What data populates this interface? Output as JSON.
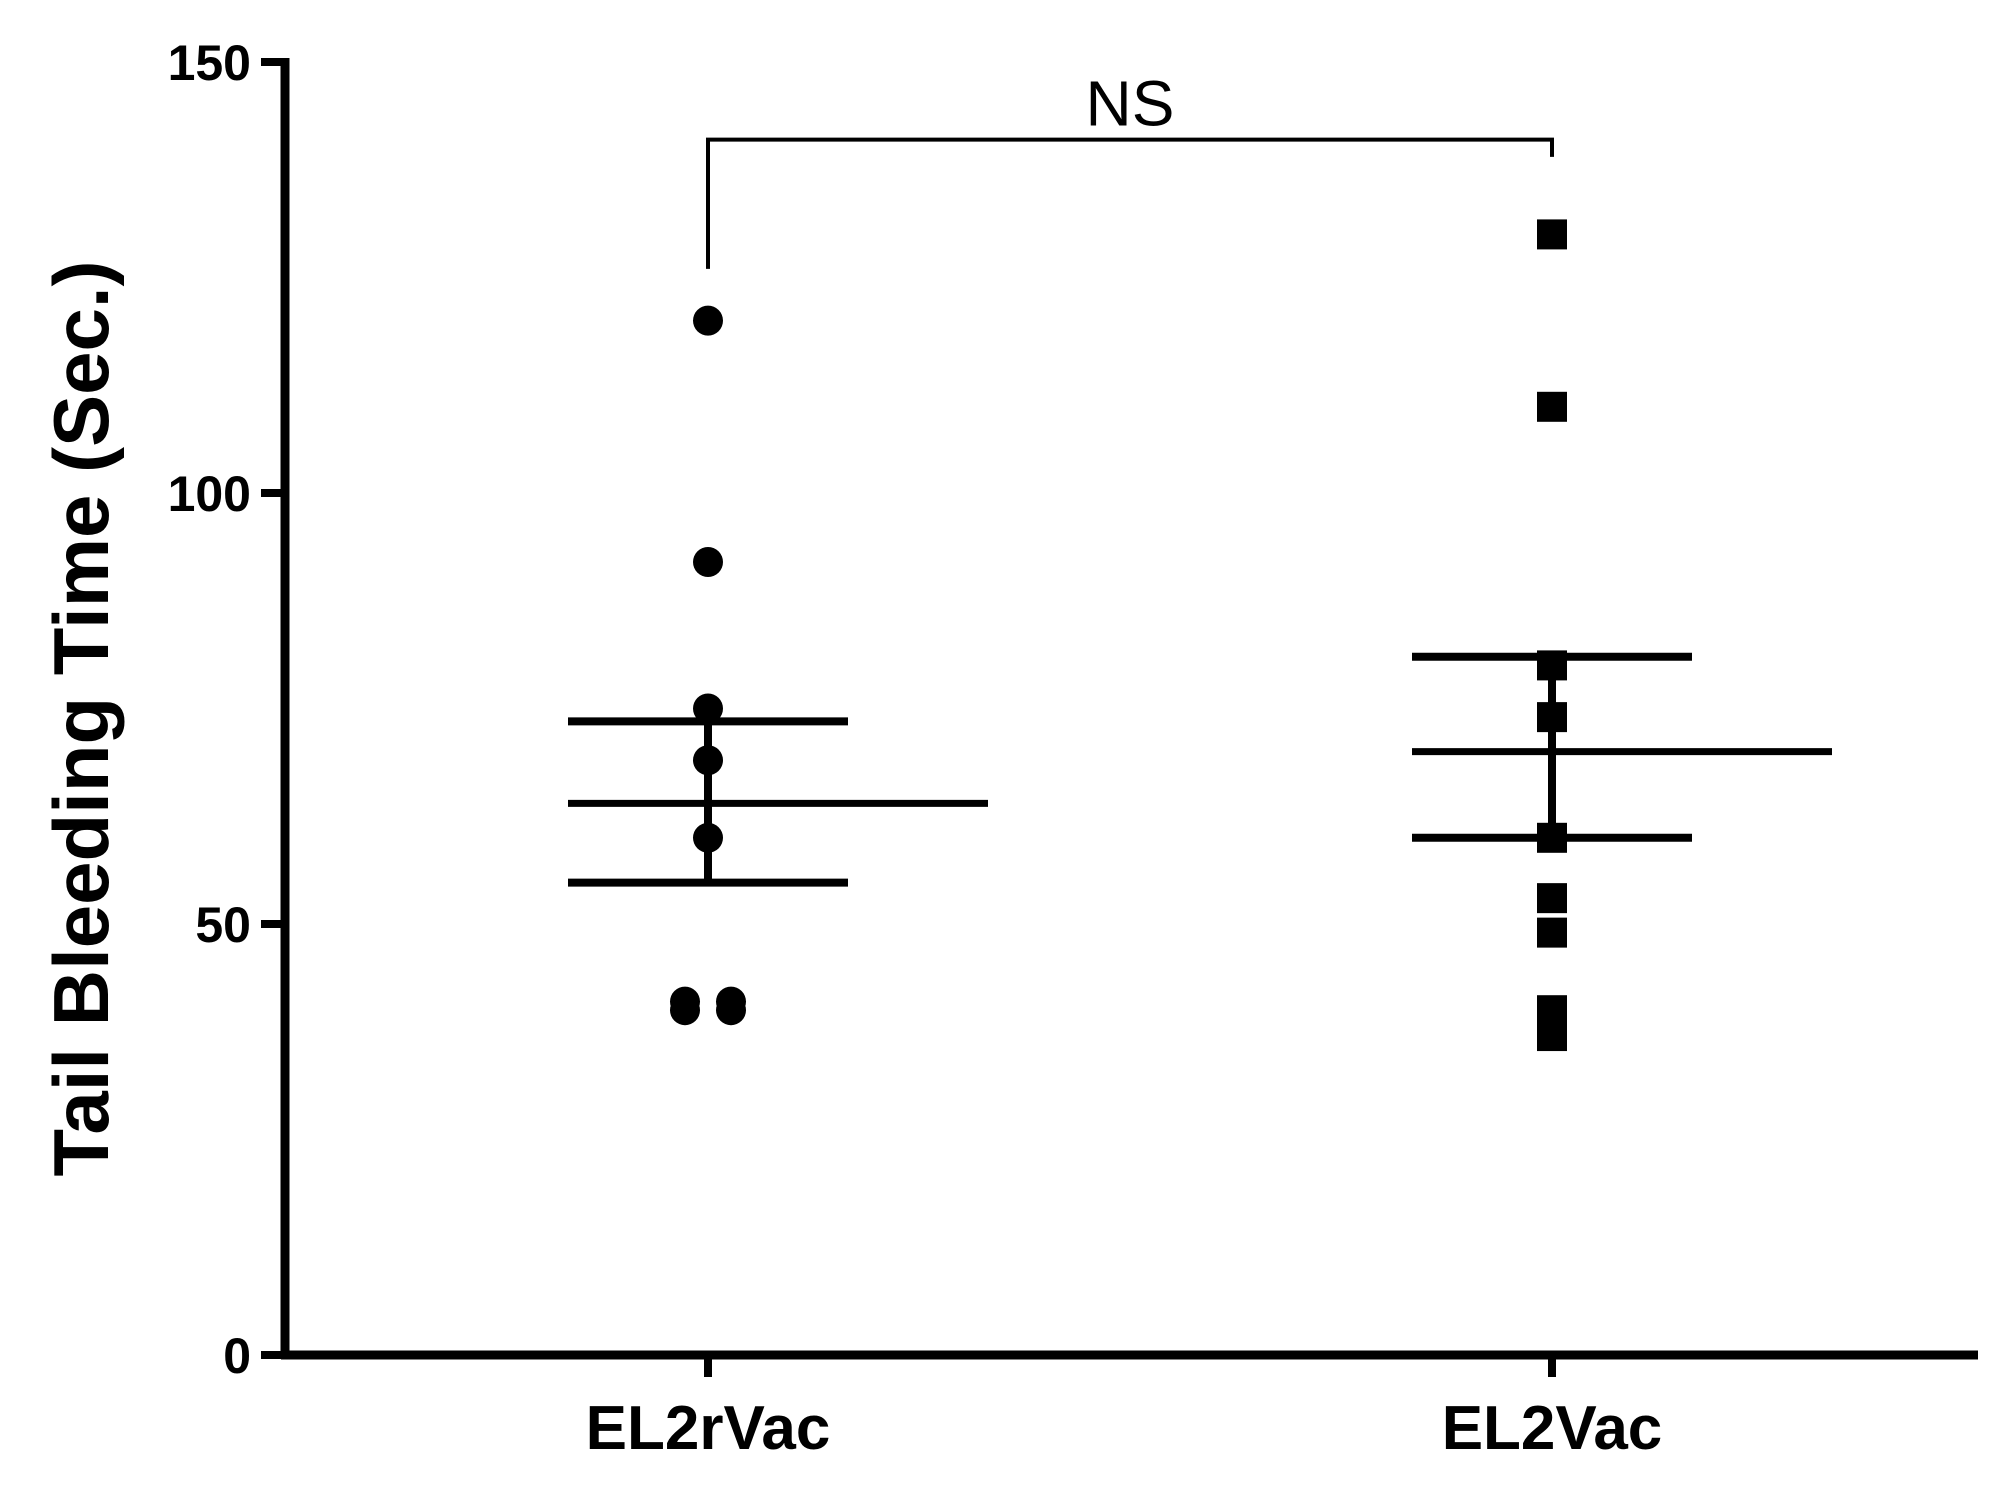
{
  "chart_data": {
    "type": "scatter",
    "ylabel": "Tail Bleeding Time  (Sec.)",
    "xlabel": "",
    "ylim": [
      0,
      150
    ],
    "yticks": [
      0,
      50,
      100,
      150
    ],
    "categories": [
      "EL2rVac",
      "EL2Vac"
    ],
    "series": [
      {
        "category": "EL2rVac",
        "marker": "circle",
        "values": [
          120,
          92,
          75,
          69,
          60,
          41,
          40,
          40,
          41
        ],
        "mean": 64,
        "sem_upper": 73.5,
        "sem_lower": 54.8
      },
      {
        "category": "EL2Vac",
        "marker": "square",
        "values": [
          130,
          110,
          80,
          74,
          60,
          53,
          49,
          40,
          37
        ],
        "mean": 70,
        "sem_upper": 81,
        "sem_lower": 60
      }
    ],
    "annotations": [
      {
        "text": "NS",
        "between": [
          "EL2rVac",
          "EL2Vac"
        ]
      }
    ],
    "grid": false,
    "color": "#000000"
  }
}
